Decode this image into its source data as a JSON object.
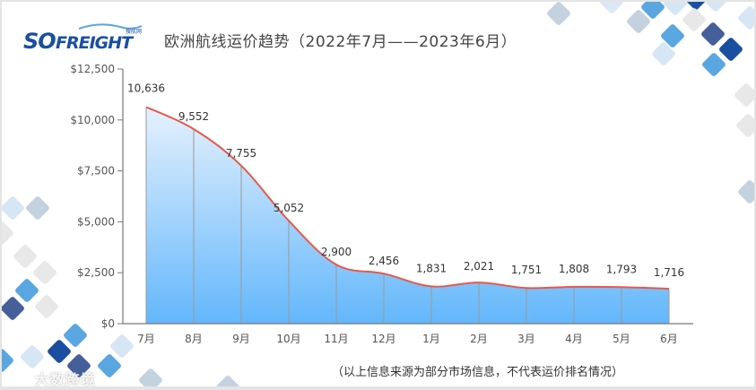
{
  "header": {
    "logo_text": "SOFREIGHT",
    "logo_subtext": "搜航网",
    "title": "欧洲航线运价趋势（2022年7月——2023年6月）"
  },
  "footer": {
    "note": "（以上信息来源为部分市场信息，不代表运价排名情况）",
    "watermark": "大数跨境"
  },
  "colors": {
    "line": "#e8584a",
    "area_top": "#e3effd",
    "area_bottom": "#66b9fb",
    "axis": "#777777",
    "logo_blue": "#1a4fa0"
  },
  "chart_data": {
    "type": "area",
    "title": "欧洲航线运价趋势（2022年7月——2023年6月）",
    "xlabel": "",
    "ylabel": "",
    "categories": [
      "7月",
      "8月",
      "9月",
      "10月",
      "11月",
      "12月",
      "1月",
      "2月",
      "3月",
      "4月",
      "5月",
      "6月"
    ],
    "values": [
      10636,
      9552,
      7755,
      5052,
      2900,
      2456,
      1831,
      2021,
      1751,
      1808,
      1793,
      1716
    ],
    "value_labels": [
      "10,636",
      "9,552",
      "7,755",
      "5,052",
      "2,900",
      "2,456",
      "1,831",
      "2,021",
      "1,751",
      "1,808",
      "1,793",
      "1,716"
    ],
    "yticks": [
      "$0",
      "$2,500",
      "$5,000",
      "$7,500",
      "$10,000",
      "$12,500"
    ],
    "ylim": [
      0,
      12500
    ],
    "grid": false,
    "legend": "none",
    "smooth": true
  }
}
